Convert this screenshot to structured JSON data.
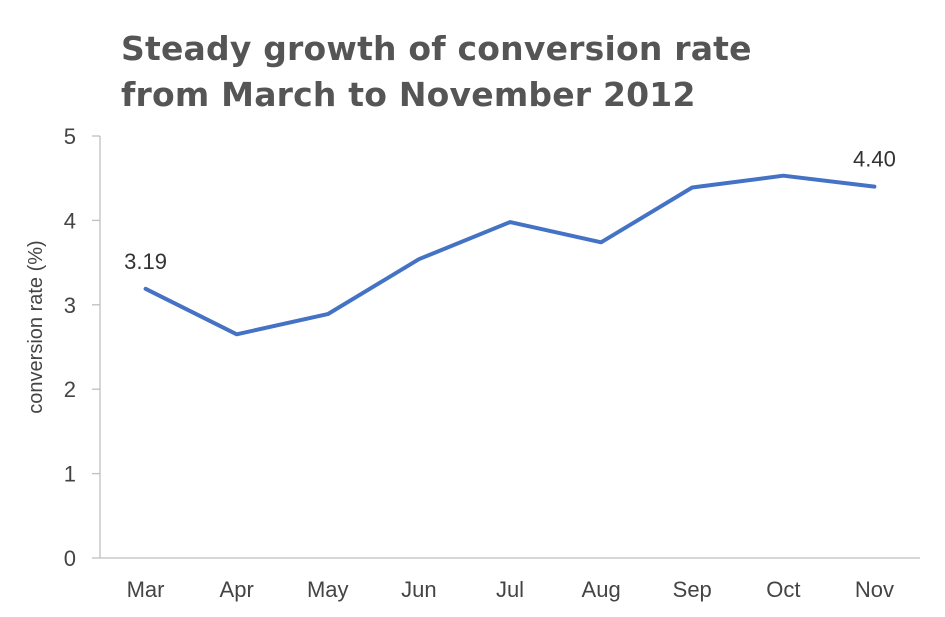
{
  "chart_data": {
    "type": "line",
    "title_lines": [
      "Steady growth of conversion rate",
      "from March to November 2012"
    ],
    "xlabel": "",
    "ylabel": "conversion rate (%)",
    "categories": [
      "Mar",
      "Apr",
      "May",
      "Jun",
      "Jul",
      "Aug",
      "Sep",
      "Oct",
      "Nov"
    ],
    "series": [
      {
        "values": [
          3.19,
          2.65,
          2.89,
          3.54,
          3.98,
          3.74,
          4.39,
          4.53,
          4.4
        ],
        "color": "#4472C4"
      }
    ],
    "ylim": [
      0,
      5
    ],
    "yticks": [
      "0",
      "1",
      "2",
      "3",
      "4",
      "5"
    ],
    "data_labels": [
      {
        "index": 0,
        "text": "3.19"
      },
      {
        "index": 8,
        "text": "4.40"
      }
    ],
    "grid": false,
    "legend": "none",
    "axis_color": "#BFBFBF"
  }
}
